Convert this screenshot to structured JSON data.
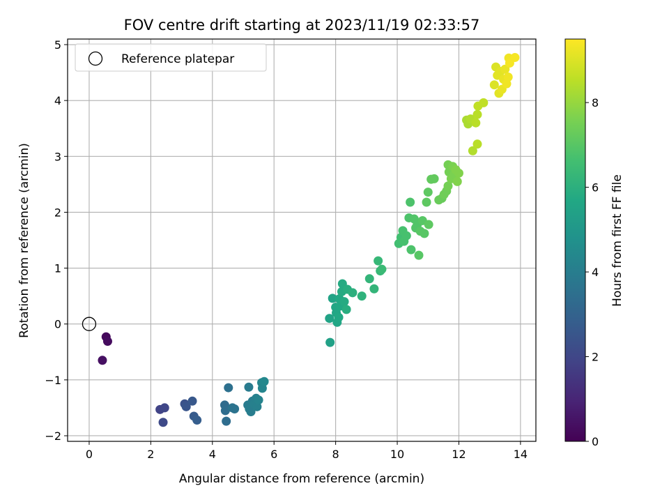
{
  "chart_data": {
    "type": "scatter",
    "title": "FOV centre drift starting at 2023/11/19 02:33:57",
    "xlabel": "Angular distance from reference (arcmin)",
    "ylabel": "Rotation from reference (arcmin)",
    "xlim": [
      -0.7,
      14.5
    ],
    "ylim": [
      -2.1,
      5.1
    ],
    "xticks": [
      0,
      2,
      4,
      6,
      8,
      10,
      12,
      14
    ],
    "yticks": [
      -2,
      -1,
      0,
      1,
      2,
      3,
      4,
      5
    ],
    "grid": true,
    "legend": {
      "placement": "top-left",
      "entries": [
        {
          "label": "Reference platepar",
          "marker": "open-circle"
        }
      ]
    },
    "reference_point": {
      "x": 0,
      "y": 0
    },
    "colorbar": {
      "label": "Hours from first FF file",
      "colormap": "viridis",
      "range": [
        0,
        9.5
      ],
      "ticks": [
        0,
        2,
        4,
        6,
        8
      ]
    },
    "points": [
      {
        "x": 0.55,
        "y": -0.23,
        "t": 0.2
      },
      {
        "x": 0.6,
        "y": -0.31,
        "t": 0.3
      },
      {
        "x": 0.43,
        "y": -0.65,
        "t": 0.4
      },
      {
        "x": 2.3,
        "y": -1.53,
        "t": 1.9
      },
      {
        "x": 2.45,
        "y": -1.5,
        "t": 2.0
      },
      {
        "x": 2.4,
        "y": -1.76,
        "t": 2.1
      },
      {
        "x": 3.1,
        "y": -1.43,
        "t": 2.4
      },
      {
        "x": 3.15,
        "y": -1.48,
        "t": 2.5
      },
      {
        "x": 3.35,
        "y": -1.38,
        "t": 2.6
      },
      {
        "x": 3.4,
        "y": -1.65,
        "t": 2.7
      },
      {
        "x": 3.5,
        "y": -1.72,
        "t": 2.8
      },
      {
        "x": 4.4,
        "y": -1.45,
        "t": 3.3
      },
      {
        "x": 4.42,
        "y": -1.55,
        "t": 3.4
      },
      {
        "x": 4.45,
        "y": -1.74,
        "t": 3.4
      },
      {
        "x": 4.52,
        "y": -1.14,
        "t": 3.5
      },
      {
        "x": 4.65,
        "y": -1.5,
        "t": 3.6
      },
      {
        "x": 4.72,
        "y": -1.52,
        "t": 3.6
      },
      {
        "x": 5.18,
        "y": -1.13,
        "t": 3.9
      },
      {
        "x": 5.15,
        "y": -1.45,
        "t": 3.9
      },
      {
        "x": 5.2,
        "y": -1.52,
        "t": 4.0
      },
      {
        "x": 5.25,
        "y": -1.57,
        "t": 4.0
      },
      {
        "x": 5.3,
        "y": -1.38,
        "t": 4.0
      },
      {
        "x": 5.35,
        "y": -1.43,
        "t": 4.1
      },
      {
        "x": 5.42,
        "y": -1.33,
        "t": 4.1
      },
      {
        "x": 5.45,
        "y": -1.48,
        "t": 4.1
      },
      {
        "x": 5.5,
        "y": -1.36,
        "t": 4.2
      },
      {
        "x": 5.6,
        "y": -1.05,
        "t": 4.3
      },
      {
        "x": 5.62,
        "y": -1.15,
        "t": 4.3
      },
      {
        "x": 5.68,
        "y": -1.03,
        "t": 4.4
      },
      {
        "x": 7.82,
        "y": -0.33,
        "t": 5.4
      },
      {
        "x": 7.8,
        "y": 0.1,
        "t": 5.5
      },
      {
        "x": 7.9,
        "y": 0.46,
        "t": 5.5
      },
      {
        "x": 8.0,
        "y": 0.3,
        "t": 5.6
      },
      {
        "x": 8.02,
        "y": 0.2,
        "t": 5.6
      },
      {
        "x": 8.05,
        "y": 0.03,
        "t": 5.6
      },
      {
        "x": 8.1,
        "y": 0.12,
        "t": 5.7
      },
      {
        "x": 8.12,
        "y": 0.45,
        "t": 5.7
      },
      {
        "x": 8.15,
        "y": 0.32,
        "t": 5.7
      },
      {
        "x": 8.2,
        "y": 0.58,
        "t": 5.8
      },
      {
        "x": 8.22,
        "y": 0.72,
        "t": 5.8
      },
      {
        "x": 8.28,
        "y": 0.4,
        "t": 5.8
      },
      {
        "x": 8.35,
        "y": 0.26,
        "t": 5.9
      },
      {
        "x": 8.38,
        "y": 0.62,
        "t": 5.9
      },
      {
        "x": 8.55,
        "y": 0.56,
        "t": 6.0
      },
      {
        "x": 8.85,
        "y": 0.5,
        "t": 6.1
      },
      {
        "x": 9.1,
        "y": 0.81,
        "t": 6.2
      },
      {
        "x": 9.25,
        "y": 0.63,
        "t": 6.2
      },
      {
        "x": 9.38,
        "y": 1.13,
        "t": 6.3
      },
      {
        "x": 9.45,
        "y": 0.95,
        "t": 6.3
      },
      {
        "x": 9.5,
        "y": 0.98,
        "t": 6.4
      },
      {
        "x": 10.05,
        "y": 1.44,
        "t": 6.6
      },
      {
        "x": 10.12,
        "y": 1.55,
        "t": 6.6
      },
      {
        "x": 10.18,
        "y": 1.67,
        "t": 6.7
      },
      {
        "x": 10.22,
        "y": 1.48,
        "t": 6.7
      },
      {
        "x": 10.3,
        "y": 1.58,
        "t": 6.7
      },
      {
        "x": 10.38,
        "y": 1.9,
        "t": 6.8
      },
      {
        "x": 10.42,
        "y": 2.18,
        "t": 6.8
      },
      {
        "x": 10.45,
        "y": 1.33,
        "t": 6.8
      },
      {
        "x": 10.55,
        "y": 1.88,
        "t": 6.9
      },
      {
        "x": 10.6,
        "y": 1.72,
        "t": 6.9
      },
      {
        "x": 10.65,
        "y": 1.78,
        "t": 6.9
      },
      {
        "x": 10.7,
        "y": 1.23,
        "t": 7.0
      },
      {
        "x": 10.75,
        "y": 1.66,
        "t": 7.0
      },
      {
        "x": 10.82,
        "y": 1.85,
        "t": 7.0
      },
      {
        "x": 10.88,
        "y": 1.62,
        "t": 7.0
      },
      {
        "x": 10.95,
        "y": 2.18,
        "t": 7.1
      },
      {
        "x": 11.0,
        "y": 2.36,
        "t": 7.1
      },
      {
        "x": 11.02,
        "y": 1.78,
        "t": 7.1
      },
      {
        "x": 11.1,
        "y": 2.59,
        "t": 7.2
      },
      {
        "x": 11.2,
        "y": 2.6,
        "t": 7.2
      },
      {
        "x": 11.35,
        "y": 2.22,
        "t": 7.3
      },
      {
        "x": 11.45,
        "y": 2.25,
        "t": 7.3
      },
      {
        "x": 11.52,
        "y": 2.32,
        "t": 7.4
      },
      {
        "x": 11.6,
        "y": 2.38,
        "t": 7.4
      },
      {
        "x": 11.65,
        "y": 2.47,
        "t": 7.5
      },
      {
        "x": 11.65,
        "y": 2.85,
        "t": 7.5
      },
      {
        "x": 11.68,
        "y": 2.72,
        "t": 7.5
      },
      {
        "x": 11.75,
        "y": 2.6,
        "t": 7.6
      },
      {
        "x": 11.8,
        "y": 2.82,
        "t": 7.6
      },
      {
        "x": 11.85,
        "y": 2.68,
        "t": 7.6
      },
      {
        "x": 11.9,
        "y": 2.76,
        "t": 7.7
      },
      {
        "x": 11.95,
        "y": 2.55,
        "t": 7.7
      },
      {
        "x": 12.0,
        "y": 2.7,
        "t": 7.7
      },
      {
        "x": 12.25,
        "y": 3.65,
        "t": 8.3
      },
      {
        "x": 12.3,
        "y": 3.58,
        "t": 8.3
      },
      {
        "x": 12.38,
        "y": 3.67,
        "t": 8.4
      },
      {
        "x": 12.45,
        "y": 3.1,
        "t": 8.4
      },
      {
        "x": 12.55,
        "y": 3.6,
        "t": 8.5
      },
      {
        "x": 12.6,
        "y": 3.22,
        "t": 8.5
      },
      {
        "x": 12.6,
        "y": 3.75,
        "t": 8.5
      },
      {
        "x": 12.62,
        "y": 3.9,
        "t": 8.6
      },
      {
        "x": 12.8,
        "y": 3.96,
        "t": 8.6
      },
      {
        "x": 13.15,
        "y": 4.28,
        "t": 9.0
      },
      {
        "x": 13.2,
        "y": 4.6,
        "t": 9.0
      },
      {
        "x": 13.25,
        "y": 4.45,
        "t": 9.1
      },
      {
        "x": 13.3,
        "y": 4.13,
        "t": 9.1
      },
      {
        "x": 13.35,
        "y": 4.52,
        "t": 9.1
      },
      {
        "x": 13.4,
        "y": 4.2,
        "t": 9.2
      },
      {
        "x": 13.45,
        "y": 4.38,
        "t": 9.2
      },
      {
        "x": 13.5,
        "y": 4.56,
        "t": 9.2
      },
      {
        "x": 13.55,
        "y": 4.3,
        "t": 9.3
      },
      {
        "x": 13.6,
        "y": 4.42,
        "t": 9.3
      },
      {
        "x": 13.62,
        "y": 4.76,
        "t": 9.3
      },
      {
        "x": 13.65,
        "y": 4.67,
        "t": 9.4
      },
      {
        "x": 13.82,
        "y": 4.77,
        "t": 9.4
      }
    ]
  }
}
